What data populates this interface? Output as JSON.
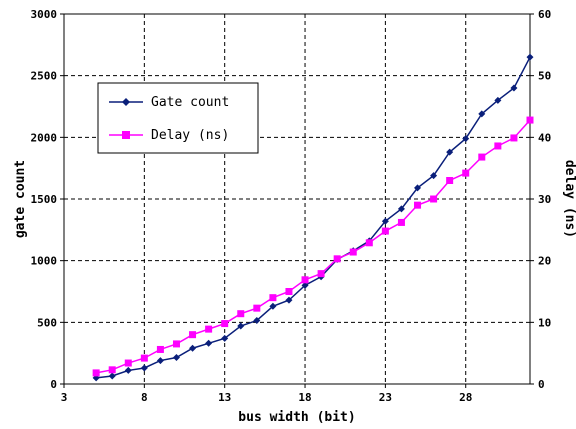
{
  "chart_data": {
    "type": "line",
    "xlabel": "bus width (bit)",
    "ylabel_left": "gate count",
    "ylabel_right": "delay (ns)",
    "xlim": [
      3,
      32
    ],
    "ylim_left": [
      0,
      3000
    ],
    "ylim_right": [
      0,
      60
    ],
    "xticks": [
      3,
      8,
      13,
      18,
      23,
      28
    ],
    "yticks_left": [
      0,
      500,
      1000,
      1500,
      2000,
      2500,
      3000
    ],
    "yticks_right": [
      0,
      10,
      20,
      30,
      40,
      50,
      60
    ],
    "grid": true,
    "legend_position": "upper-left",
    "x": [
      5,
      6,
      7,
      8,
      9,
      10,
      11,
      12,
      13,
      14,
      15,
      16,
      17,
      18,
      19,
      20,
      21,
      22,
      23,
      24,
      25,
      26,
      27,
      28,
      29,
      30,
      31,
      32
    ],
    "series": [
      {
        "name": "Gate count",
        "axis": "left",
        "color": "#0a1f7a",
        "marker": "diamond",
        "values": [
          50,
          65,
          110,
          130,
          190,
          215,
          290,
          330,
          370,
          470,
          515,
          630,
          680,
          800,
          870,
          1010,
          1080,
          1160,
          1320,
          1420,
          1590,
          1690,
          1880,
          1990,
          2190,
          2300,
          2400,
          2650
        ]
      },
      {
        "name": "Delay (ns)",
        "axis": "right",
        "color": "#ff00ff",
        "marker": "square",
        "values": [
          1.8,
          2.3,
          3.4,
          4.2,
          5.6,
          6.5,
          8.0,
          8.9,
          9.8,
          11.4,
          12.3,
          14.0,
          15.0,
          16.9,
          17.9,
          20.3,
          21.4,
          22.9,
          24.8,
          26.2,
          29.0,
          30.0,
          33.0,
          34.2,
          36.8,
          38.6,
          39.9,
          42.8
        ]
      }
    ]
  }
}
